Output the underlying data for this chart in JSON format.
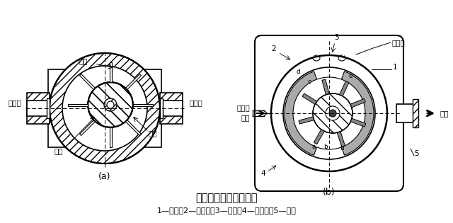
{
  "title": "单作用叶片泵工作原理",
  "subtitle": "1—转子；2—定子环；3—叶片；4—配油盘；5—泵体",
  "label_a": "(a)",
  "label_b": "(b)",
  "label_dingzi": "定子",
  "label_zhuanzi": "转子",
  "label_yepian": "叶片",
  "label_xiyoukou": "吸油口",
  "label_yaoyoukou_a": "压油口",
  "label_xiyou_b": "吸油",
  "label_yaoyou_b": "压油",
  "label_meimao": "眉毛槽",
  "bg_color": "#ffffff"
}
